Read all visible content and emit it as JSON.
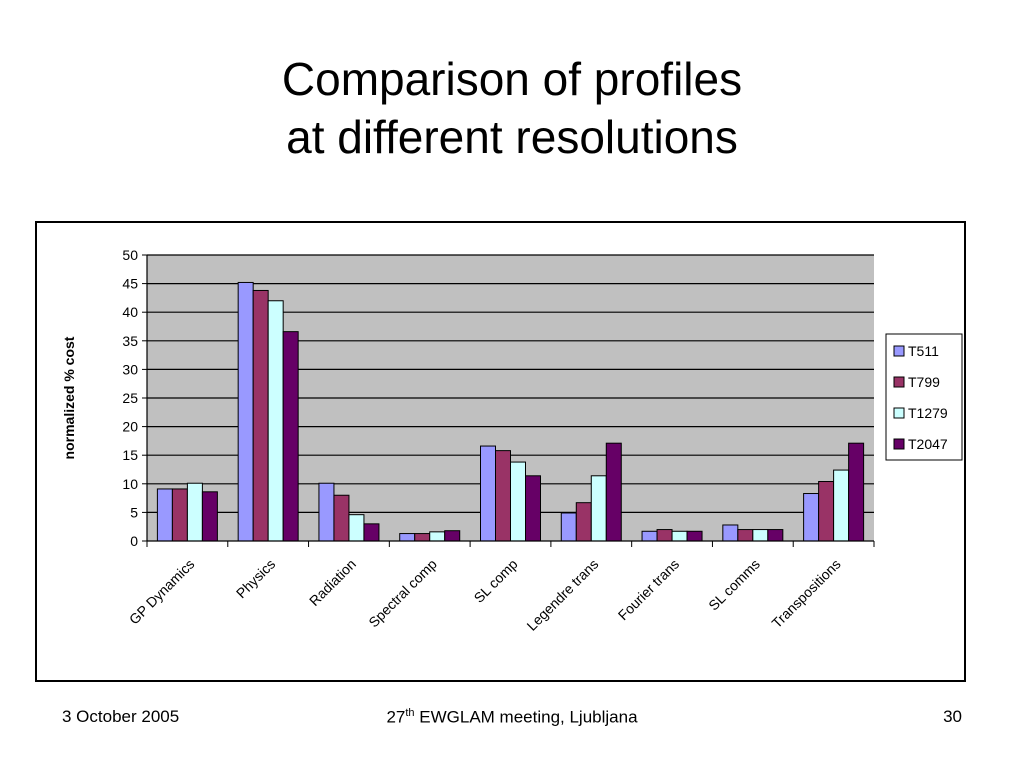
{
  "title": {
    "line1": "Comparison of profiles",
    "line2": "at different resolutions"
  },
  "footer": {
    "date": "3 October 2005",
    "meeting_num": "27",
    "meeting_sup": "th",
    "meeting_rest": " EWGLAM meeting, Ljubljana",
    "page": "30"
  },
  "colors": {
    "plot_bg": "#C0C0C0",
    "gridline": "#000000"
  },
  "chart_data": {
    "type": "bar",
    "title": "",
    "xlabel": "",
    "ylabel": "normalized % cost",
    "ylim": [
      0,
      50
    ],
    "yticks": [
      0,
      5,
      10,
      15,
      20,
      25,
      30,
      35,
      40,
      45,
      50
    ],
    "grid": true,
    "legend_position": "right",
    "categories": [
      "GP Dynamics",
      "Physics",
      "Radiation",
      "Spectral comp",
      "SL comp",
      "Legendre trans",
      "Fourier trans",
      "SL comms",
      "Transpositions"
    ],
    "series": [
      {
        "name": "T511",
        "color": "#9999FF",
        "values": [
          9.1,
          45.2,
          10.1,
          1.3,
          16.6,
          4.9,
          1.7,
          2.8,
          8.3
        ]
      },
      {
        "name": "T799",
        "color": "#993366",
        "values": [
          9.1,
          43.8,
          8.0,
          1.3,
          15.8,
          6.7,
          2.0,
          2.0,
          10.4
        ]
      },
      {
        "name": "T1279",
        "color": "#CCFFFF",
        "values": [
          10.1,
          42.0,
          4.6,
          1.6,
          13.8,
          11.4,
          1.7,
          2.0,
          12.4
        ]
      },
      {
        "name": "T2047",
        "color": "#660066",
        "values": [
          8.6,
          36.6,
          3.0,
          1.8,
          11.4,
          17.1,
          1.7,
          2.0,
          17.1
        ]
      }
    ]
  }
}
